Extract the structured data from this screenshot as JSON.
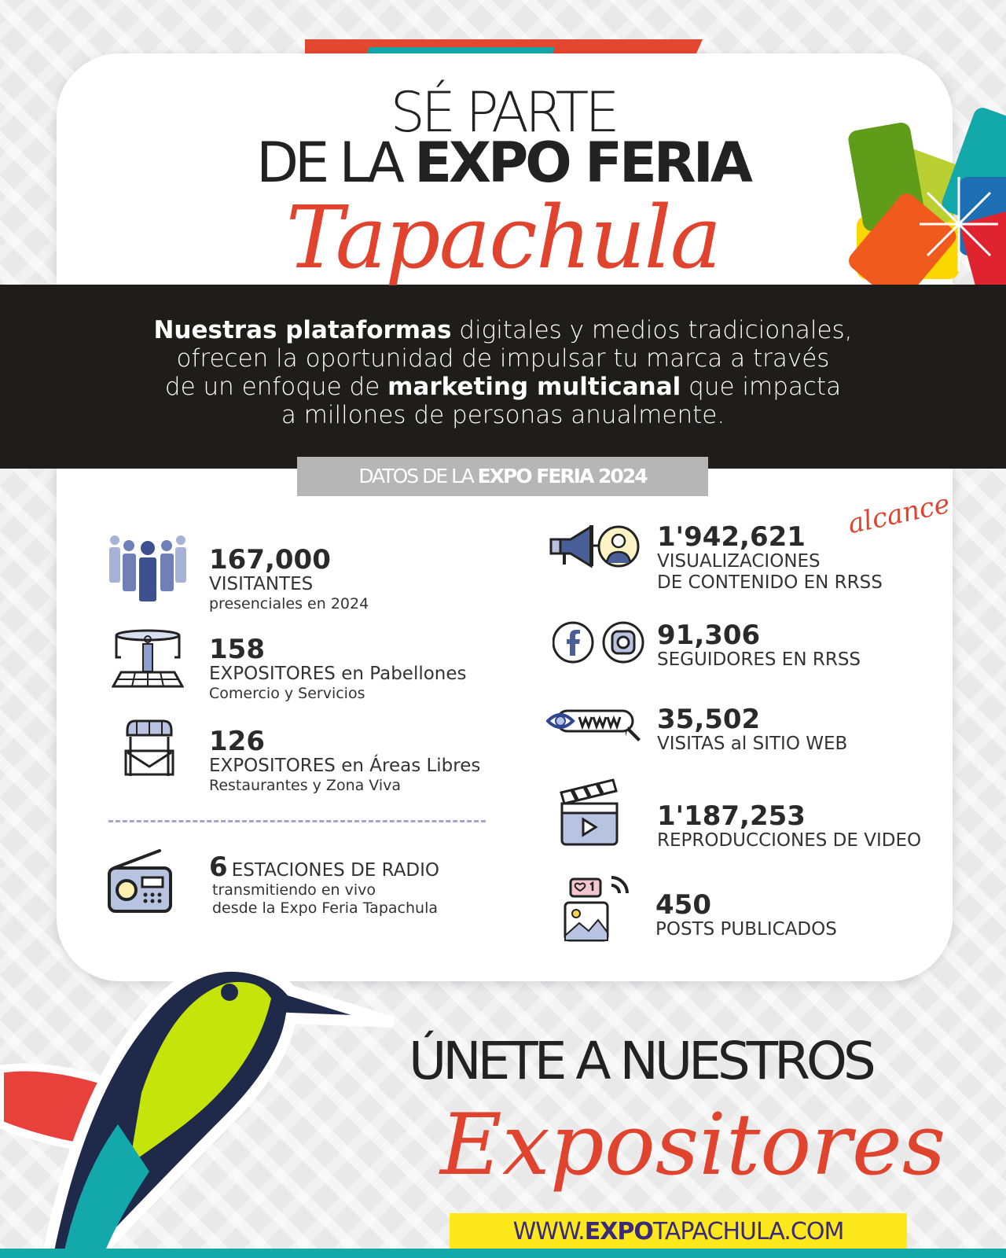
{
  "header": {
    "line1": "SÉ PARTE",
    "line2_light": "DE LA ",
    "line2_bold": "EXPO FERIA",
    "script": "Tapachula"
  },
  "intro": {
    "p1_bold": "Nuestras plataformas",
    "p1": " digitales y medios tradicionales,",
    "p2": "ofrecen la oportunidad de impulsar tu marca a través",
    "p3_pre": "de un enfoque de ",
    "p3_bold": "marketing multicanal",
    "p3_post": " que impacta",
    "p4": "a millones de personas anualmente."
  },
  "section": {
    "light": "DATOS DE LA ",
    "bold": "EXPO FERIA 2024"
  },
  "left_stats": [
    {
      "icon": "crowd-icon",
      "value": "167,000",
      "label": "VISITANTES",
      "sub": "presenciales en 2024"
    },
    {
      "icon": "pavilion-icon",
      "value": "158",
      "label": "EXPOSITORES en Pabellones",
      "sub": "Comercio y Servicios"
    },
    {
      "icon": "market-stall-icon",
      "value": "126",
      "label": "EXPOSITORES en Áreas Libres",
      "sub": "Restaurantes y Zona Viva"
    }
  ],
  "radio": {
    "icon": "radio-icon",
    "value": "6",
    "label": "ESTACIONES DE RADIO",
    "sub1": "transmitiendo en vivo",
    "sub2": "desde la Expo Feria Tapachula"
  },
  "right_stats": [
    {
      "icon": "megaphone-icon",
      "value": "1'942,621",
      "label": "VISUALIZACIONES",
      "label2": "DE CONTENIDO EN RRSS",
      "note": "alcance"
    },
    {
      "icon": "facebook-instagram-icon",
      "value": "91,306",
      "label": "SEGUIDORES EN RRSS"
    },
    {
      "icon": "www-eye-icon",
      "value": "35,502",
      "label": "VISITAS al SITIO WEB"
    },
    {
      "icon": "clapperboard-icon",
      "value": "1'187,253",
      "label": "REPRODUCCIONES DE VIDEO"
    },
    {
      "icon": "social-post-icon",
      "value": "450",
      "label": "POSTS PUBLICADOS"
    }
  ],
  "cta": {
    "line1": "ÚNETE A NUESTROS",
    "script": "Expositores"
  },
  "url": {
    "pre": "WWW.",
    "bold": "EXPO",
    "mid": "TAPACHULA",
    "post": ".COM"
  },
  "colors": {
    "red": "#e4472f",
    "teal": "#13a8a9",
    "black_band": "#1e1d1c",
    "yellow": "#fde81b",
    "icon_blue": "#4a5e98"
  }
}
